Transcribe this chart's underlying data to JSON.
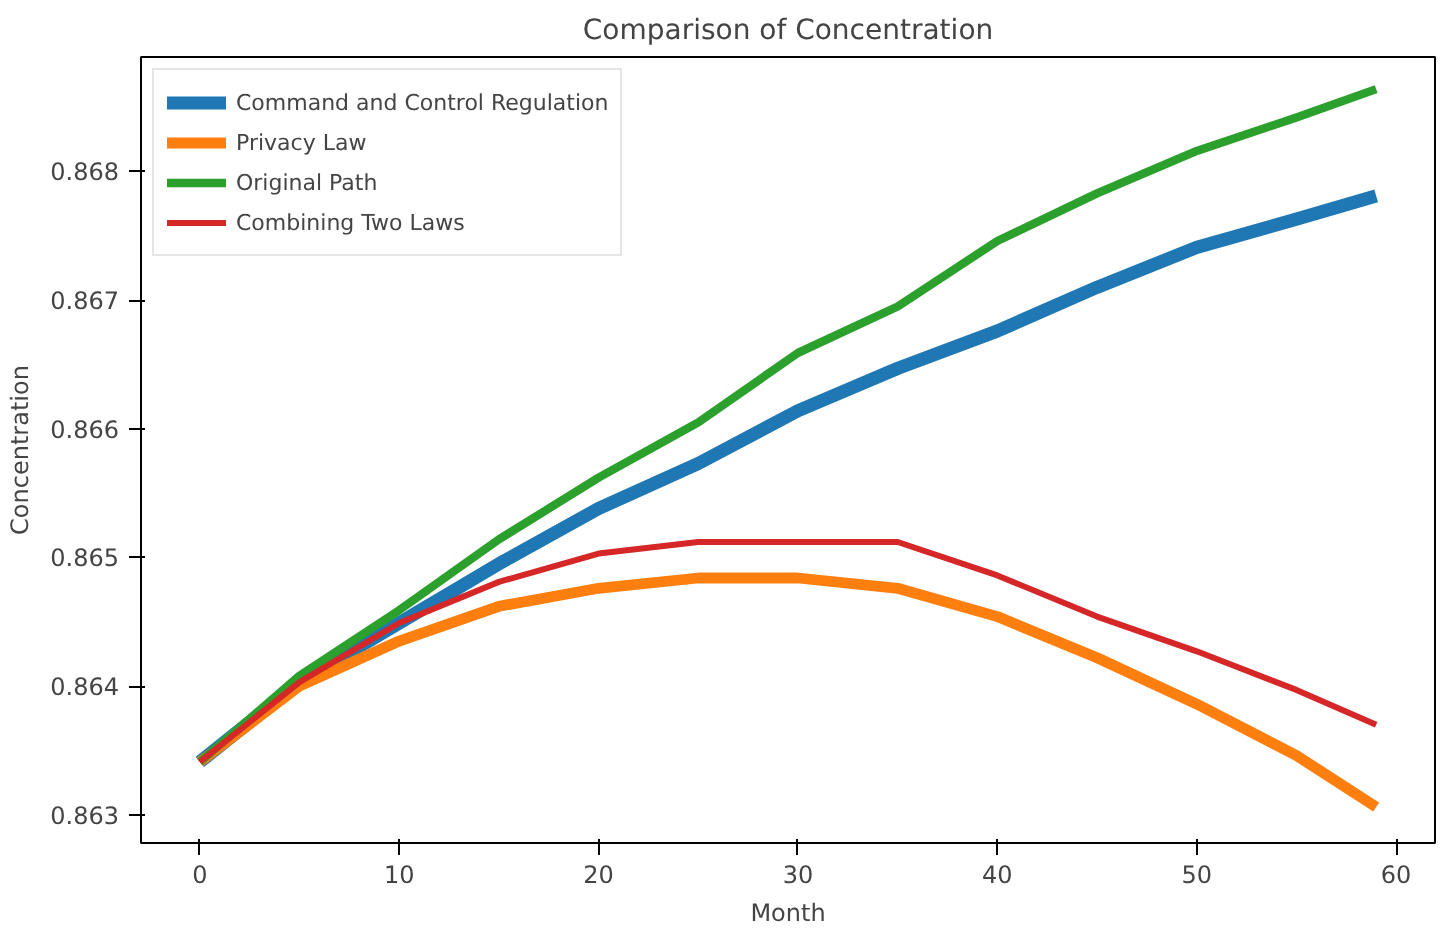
{
  "chart_data": {
    "type": "line",
    "title": "Comparison of Concentration",
    "xlabel": "Month",
    "ylabel": "Concentration",
    "x": [
      0,
      5,
      10,
      15,
      20,
      25,
      30,
      35,
      40,
      45,
      50,
      55,
      59
    ],
    "xlim": [
      -2.95,
      61.95
    ],
    "xticks": [
      0,
      10,
      20,
      30,
      40,
      50,
      60
    ],
    "ylim": [
      0.86278,
      0.86889
    ],
    "yticks": [
      0.863,
      0.864,
      0.865,
      0.866,
      0.867,
      0.868
    ],
    "grid": false,
    "legend": "top left",
    "marker": "none",
    "line_style": "solid",
    "series": [
      {
        "name": "Command and Control Regulation",
        "color": "#1f77b4",
        "values": [
          0.86341,
          0.86403,
          0.86449,
          0.86495,
          0.86538,
          0.86573,
          0.86614,
          0.86647,
          0.86676,
          0.8671,
          0.86741,
          0.86763,
          0.86781
        ]
      },
      {
        "name": "Privacy Law",
        "color": "#ff7f0e",
        "values": [
          0.86341,
          0.864,
          0.86435,
          0.86462,
          0.86476,
          0.86484,
          0.86484,
          0.86476,
          0.86454,
          0.86422,
          0.86386,
          0.86346,
          0.86306
        ]
      },
      {
        "name": "Original Path",
        "color": "#2ca02c",
        "values": [
          0.86341,
          0.86408,
          0.86459,
          0.86514,
          0.86562,
          0.86605,
          0.86659,
          0.86695,
          0.86746,
          0.86783,
          0.86816,
          0.86842,
          0.86864
        ]
      },
      {
        "name": "Combining Two Laws",
        "color": "#d62728",
        "values": [
          0.86341,
          0.86403,
          0.86449,
          0.86481,
          0.86503,
          0.86512,
          0.86512,
          0.86512,
          0.86486,
          0.86454,
          0.86427,
          0.86397,
          0.8637
        ]
      }
    ]
  }
}
